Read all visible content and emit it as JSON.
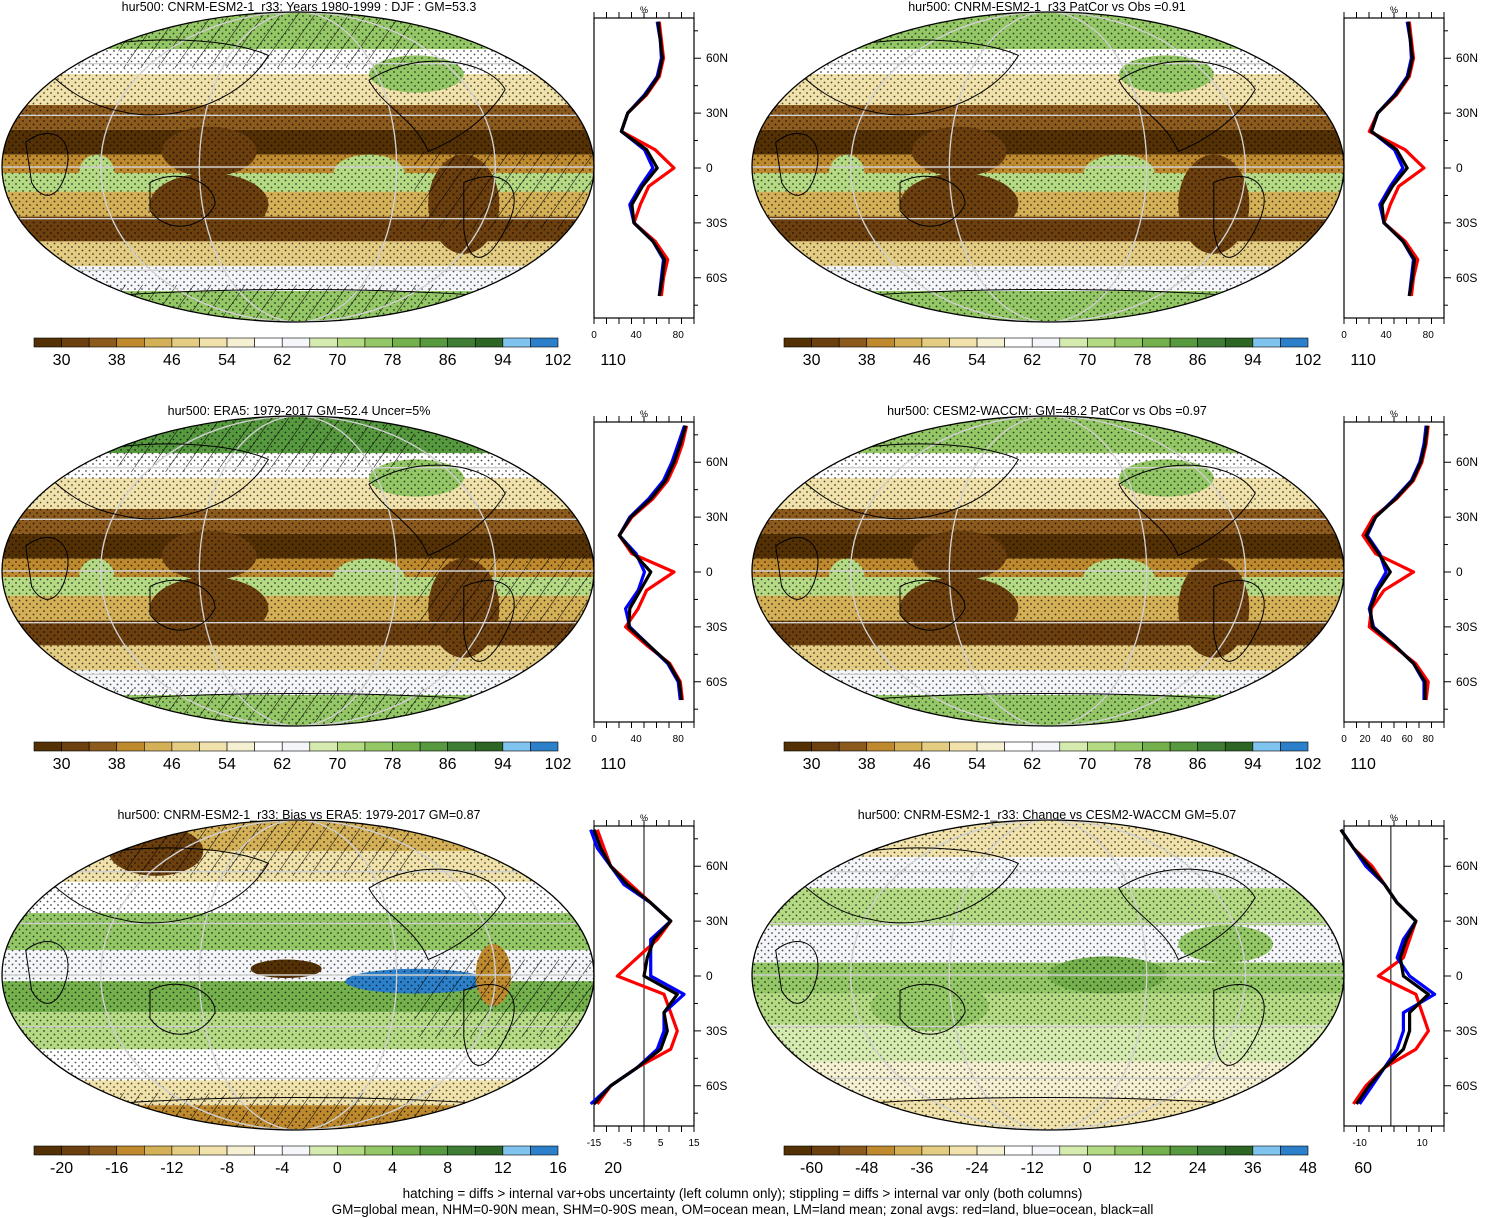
{
  "panels": [
    {
      "title": "hur500: CNRM-ESM2-1_r33: Years 1980-1999 : DJF : GM=53.3",
      "scheme": "abs",
      "cbar_labels": [
        "30",
        "38",
        "46",
        "54",
        "62",
        "70",
        "78",
        "86",
        "94",
        "102",
        "110"
      ],
      "profile_unit": "%",
      "profile_xticks": [
        "0",
        "40",
        "80"
      ],
      "profile_yticks": [
        "60N",
        "30N",
        "0",
        "30S",
        "60S"
      ]
    },
    {
      "title": "hur500: CNRM-ESM2-1_r33 PatCor vs Obs =0.91",
      "scheme": "abs",
      "cbar_labels": [
        "30",
        "38",
        "46",
        "54",
        "62",
        "70",
        "78",
        "86",
        "94",
        "102",
        "110"
      ],
      "profile_unit": "%",
      "profile_xticks": [
        "0",
        "40",
        "80"
      ],
      "profile_yticks": [
        "60N",
        "30N",
        "0",
        "30S",
        "60S"
      ]
    },
    {
      "title": "hur500: ERA5: 1979-2017 GM=52.4 Uncer=5%",
      "scheme": "abs",
      "cbar_labels": [
        "30",
        "38",
        "46",
        "54",
        "62",
        "70",
        "78",
        "86",
        "94",
        "102",
        "110"
      ],
      "profile_unit": "%",
      "profile_xticks": [
        "0",
        "40",
        "80"
      ],
      "profile_yticks": [
        "60N",
        "30N",
        "0",
        "30S",
        "60S"
      ]
    },
    {
      "title": "hur500: CESM2-WACCM: GM=48.2 PatCor vs Obs =0.97",
      "scheme": "abs",
      "cbar_labels": [
        "30",
        "38",
        "46",
        "54",
        "62",
        "70",
        "78",
        "86",
        "94",
        "102",
        "110"
      ],
      "profile_unit": "%",
      "profile_xticks": [
        "0",
        "20",
        "40",
        "60",
        "80"
      ],
      "profile_yticks": [
        "60N",
        "30N",
        "0",
        "30S",
        "60S"
      ]
    },
    {
      "title": "hur500: CNRM-ESM2-1_r33: Bias vs ERA5: 1979-2017 GM=0.87",
      "scheme": "diff",
      "cbar_labels": [
        "-20",
        "-16",
        "-12",
        "-8",
        "-4",
        "0",
        "4",
        "8",
        "12",
        "16",
        "20"
      ],
      "profile_unit": "%",
      "profile_xticks": [
        "-15",
        "-5",
        "5",
        "15"
      ],
      "profile_yticks": [
        "60N",
        "30N",
        "0",
        "30S",
        "60S"
      ]
    },
    {
      "title": "hur500: CNRM-ESM2-1_r33: Change vs CESM2-WACCM GM=5.07",
      "scheme": "diff",
      "cbar_labels": [
        "-60",
        "-48",
        "-36",
        "-24",
        "-12",
        "0",
        "12",
        "24",
        "36",
        "48",
        "60"
      ],
      "profile_unit": "%",
      "profile_xticks": [
        "-10",
        "10"
      ],
      "profile_yticks": [
        "60N",
        "30N",
        "0",
        "30S",
        "60S"
      ]
    }
  ],
  "footnote": {
    "line1": "hatching = diffs > internal var+obs uncertainty (left column only); stippling = diffs > internal var only (both columns)",
    "line2": "GM=global mean, NHM=0-90N mean, SHM=0-90S mean, OM=ocean mean, LM=land mean; zonal avgs: red=land, blue=ocean, black=all"
  },
  "colors": {
    "abs": [
      "#543005",
      "#6b3f0e",
      "#8c5a1c",
      "#bf8a2e",
      "#d4b057",
      "#e4cd83",
      "#f0e2aa",
      "#f6f0d2",
      "#ffffff",
      "#f4f6fa",
      "#d6ebb0",
      "#b5da84",
      "#94c765",
      "#74b14c",
      "#56993e",
      "#3e7d33",
      "#2c6524",
      "#7fc4ee",
      "#2b80c9"
    ],
    "diff": [
      "#543005",
      "#6b3f0e",
      "#8c5a1c",
      "#bf8a2e",
      "#d4b057",
      "#e4cd83",
      "#f0e2aa",
      "#f6f0d2",
      "#ffffff",
      "#f4f6fa",
      "#d6ebb0",
      "#b5da84",
      "#94c765",
      "#74b14c",
      "#56993e",
      "#3e7d33",
      "#2c6524",
      "#7fc4ee",
      "#2b80c9"
    ],
    "land_line": "#ff0000",
    "ocean_line": "#0000ff",
    "all_line": "#000000"
  },
  "chart_data": [
    {
      "type": "heatmap",
      "title": "hur500: CNRM-ESM2-1_r33: Years 1980-1999 : DJF : GM=53.3",
      "colorbar_ticks": [
        30,
        38,
        46,
        54,
        62,
        70,
        78,
        86,
        94,
        102,
        110
      ],
      "zonal_profile": {
        "lat": [
          80,
          70,
          60,
          50,
          40,
          30,
          20,
          10,
          0,
          -10,
          -20,
          -30,
          -40,
          -50,
          -60,
          -70
        ],
        "series": [
          {
            "name": "land",
            "values": [
              62,
              64,
              66,
              62,
              50,
              32,
              26,
              58,
              76,
              52,
              44,
              38,
              58,
              70,
              66,
              64
            ]
          },
          {
            "name": "ocean",
            "values": [
              60,
              63,
              64,
              60,
              48,
              32,
              26,
              48,
              56,
              44,
              34,
              38,
              56,
              66,
              64,
              62
            ]
          },
          {
            "name": "all",
            "values": [
              61,
              63,
              65,
              61,
              49,
              32,
              26,
              50,
              60,
              46,
              36,
              38,
              56,
              67,
              65,
              62
            ]
          }
        ]
      }
    },
    {
      "type": "heatmap",
      "title": "hur500: CNRM-ESM2-1_r33 PatCor vs Obs =0.91",
      "colorbar_ticks": [
        30,
        38,
        46,
        54,
        62,
        70,
        78,
        86,
        94,
        102,
        110
      ],
      "zonal_profile": {
        "lat": [
          80,
          70,
          60,
          50,
          40,
          30,
          20,
          10,
          0,
          -10,
          -20,
          -30,
          -40,
          -50,
          -60,
          -70
        ],
        "series": [
          {
            "name": "land",
            "values": [
              62,
              64,
              66,
              62,
              50,
              32,
              24,
              58,
              76,
              52,
              44,
              38,
              58,
              70,
              66,
              64
            ]
          },
          {
            "name": "ocean",
            "values": [
              60,
              63,
              64,
              60,
              48,
              32,
              26,
              48,
              56,
              44,
              34,
              38,
              56,
              66,
              64,
              62
            ]
          },
          {
            "name": "all",
            "values": [
              61,
              63,
              65,
              61,
              49,
              32,
              26,
              50,
              60,
              46,
              36,
              38,
              56,
              67,
              65,
              62
            ]
          }
        ]
      }
    },
    {
      "type": "heatmap",
      "title": "hur500: ERA5: 1979-2017 GM=52.4 Uncer=5%",
      "colorbar_ticks": [
        30,
        38,
        46,
        54,
        62,
        70,
        78,
        86,
        94,
        102,
        110
      ],
      "zonal_profile": {
        "lat": [
          80,
          70,
          60,
          50,
          40,
          30,
          20,
          10,
          0,
          -10,
          -20,
          -30,
          -40,
          -50,
          -60,
          -70
        ],
        "series": [
          {
            "name": "land",
            "values": [
              88,
              84,
              78,
              70,
              56,
              36,
              24,
              36,
              76,
              50,
              42,
              30,
              50,
              72,
              82,
              84
            ]
          },
          {
            "name": "ocean",
            "values": [
              86,
              80,
              74,
              66,
              52,
              34,
              24,
              40,
              48,
              42,
              30,
              34,
              52,
              70,
              80,
              82
            ]
          },
          {
            "name": "all",
            "values": [
              87,
              82,
              76,
              68,
              54,
              35,
              24,
              38,
              54,
              44,
              34,
              33,
              52,
              71,
              81,
              83
            ]
          }
        ]
      }
    },
    {
      "type": "heatmap",
      "title": "hur500: CESM2-WACCM: GM=48.2 PatCor vs Obs =0.97",
      "colorbar_ticks": [
        30,
        38,
        46,
        54,
        62,
        70,
        78,
        86,
        94,
        102,
        110
      ],
      "zonal_profile": {
        "lat": [
          80,
          70,
          60,
          50,
          40,
          30,
          20,
          10,
          0,
          -10,
          -20,
          -30,
          -40,
          -50,
          -60,
          -70
        ],
        "series": [
          {
            "name": "land",
            "values": [
              80,
              78,
              74,
              66,
              50,
              28,
              18,
              30,
              66,
              38,
              26,
              24,
              46,
              68,
              80,
              78
            ]
          },
          {
            "name": "ocean",
            "values": [
              78,
              76,
              72,
              64,
              48,
              30,
              22,
              34,
              40,
              30,
              24,
              28,
              48,
              66,
              76,
              76
            ]
          },
          {
            "name": "all",
            "values": [
              79,
              77,
              73,
              65,
              49,
              30,
              21,
              33,
              44,
              32,
              25,
              27,
              48,
              66,
              77,
              77
            ]
          }
        ]
      }
    },
    {
      "type": "heatmap",
      "title": "hur500: CNRM-ESM2-1_r33: Bias vs ERA5: 1979-2017 GM=0.87",
      "colorbar_ticks": [
        -20,
        -16,
        -12,
        -8,
        -4,
        0,
        4,
        8,
        12,
        16,
        20
      ],
      "zonal_profile": {
        "lat": [
          80,
          70,
          60,
          50,
          40,
          30,
          20,
          10,
          0,
          -10,
          -20,
          -30,
          -40,
          -50,
          -60,
          -70
        ],
        "series": [
          {
            "name": "land",
            "values": [
              -14,
              -12,
              -10,
              -4,
              2,
              8,
              4,
              -2,
              -8,
              6,
              8,
              10,
              8,
              -2,
              -10,
              -14
            ]
          },
          {
            "name": "ocean",
            "values": [
              -16,
              -14,
              -10,
              -6,
              2,
              8,
              2,
              2,
              2,
              12,
              6,
              6,
              4,
              -2,
              -10,
              -16
            ]
          },
          {
            "name": "all",
            "values": [
              -15,
              -13,
              -10,
              -5,
              2,
              8,
              3,
              1,
              0,
              10,
              6,
              7,
              5,
              -2,
              -10,
              -15
            ]
          }
        ]
      }
    },
    {
      "type": "heatmap",
      "title": "hur500: CNRM-ESM2-1_r33: Change vs CESM2-WACCM GM=5.07",
      "colorbar_ticks": [
        -60,
        -48,
        -36,
        -24,
        -12,
        0,
        12,
        24,
        36,
        48,
        60
      ],
      "zonal_profile": {
        "lat": [
          80,
          70,
          60,
          50,
          40,
          30,
          20,
          10,
          0,
          -10,
          -20,
          -30,
          -40,
          -50,
          -60,
          -70
        ],
        "series": [
          {
            "name": "land",
            "values": [
              -16,
              -12,
              -6,
              -2,
              2,
              8,
              6,
              4,
              -4,
              8,
              10,
              12,
              8,
              -2,
              -8,
              -12
            ]
          },
          {
            "name": "ocean",
            "values": [
              -16,
              -12,
              -8,
              -2,
              2,
              8,
              4,
              2,
              6,
              14,
              4,
              4,
              2,
              -2,
              -6,
              -10
            ]
          },
          {
            "name": "all",
            "values": [
              -16,
              -12,
              -7,
              -2,
              2,
              8,
              5,
              3,
              4,
              12,
              6,
              6,
              4,
              -2,
              -7,
              -11
            ]
          }
        ]
      }
    }
  ]
}
